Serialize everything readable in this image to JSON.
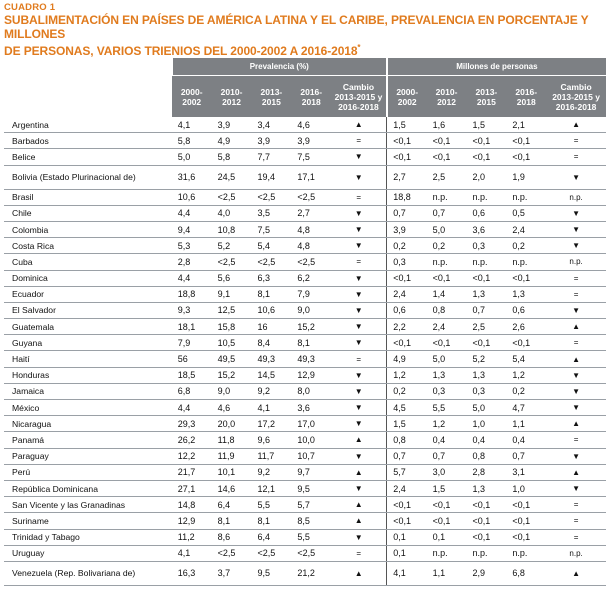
{
  "caption": {
    "label": "CUADRO 1",
    "title_line1": "SUBALIMENTACIÓN EN PAÍSES DE AMÉRICA LATINA Y EL CARIBE, PREVALENCIA EN PORCENTAJE Y MILLONES",
    "title_line2": "DE PERSONAS, VARIOS TRIENIOS DEL 2000-2002 A 2016-2018",
    "title_mark": "*"
  },
  "header": {
    "prevalence_group": "Prevalencia (%)",
    "millions_group": "Millones de personas",
    "p1_a": "2000-",
    "p1_b": "2002",
    "p2_a": "2010-",
    "p2_b": "2012",
    "p3_a": "2013-",
    "p3_b": "2015",
    "p4_a": "2016-",
    "p4_b": "2018",
    "chg_a": "Cambio",
    "chg_b": "2013-2015 y",
    "chg_c": "2016-2018"
  },
  "rows": [
    {
      "country": "Argentina",
      "p": [
        "4,1",
        "3,9",
        "3,4",
        "4,6"
      ],
      "pc": "▲",
      "m": [
        "1,5",
        "1,6",
        "1,5",
        "2,1"
      ],
      "mc": "▲"
    },
    {
      "country": "Barbados",
      "p": [
        "5,8",
        "4,9",
        "3,9",
        "3,9"
      ],
      "pc": "=",
      "m": [
        "<0,1",
        "<0,1",
        "<0,1",
        "<0,1"
      ],
      "mc": "="
    },
    {
      "country": "Belice",
      "p": [
        "5,0",
        "5,8",
        "7,7",
        "7,5"
      ],
      "pc": "▼",
      "m": [
        "<0,1",
        "<0,1",
        "<0,1",
        "<0,1"
      ],
      "mc": "="
    },
    {
      "country": "Bolivia (Estado Plurinacional de)",
      "p": [
        "31,6",
        "24,5",
        "19,4",
        "17,1"
      ],
      "pc": "▼",
      "m": [
        "2,7",
        "2,5",
        "2,0",
        "1,9"
      ],
      "mc": "▼"
    },
    {
      "country": "Brasil",
      "p": [
        "10,6",
        "<2,5",
        "<2,5",
        "<2,5"
      ],
      "pc": "=",
      "m": [
        "18,8",
        "n.p.",
        "n.p.",
        "n.p."
      ],
      "mc": "n.p."
    },
    {
      "country": "Chile",
      "p": [
        "4,4",
        "4,0",
        "3,5",
        "2,7"
      ],
      "pc": "▼",
      "m": [
        "0,7",
        "0,7",
        "0,6",
        "0,5"
      ],
      "mc": "▼"
    },
    {
      "country": "Colombia",
      "p": [
        "9,4",
        "10,8",
        "7,5",
        "4,8"
      ],
      "pc": "▼",
      "m": [
        "3,9",
        "5,0",
        "3,6",
        "2,4"
      ],
      "mc": "▼"
    },
    {
      "country": "Costa Rica",
      "p": [
        "5,3",
        "5,2",
        "5,4",
        "4,8"
      ],
      "pc": "▼",
      "m": [
        "0,2",
        "0,2",
        "0,3",
        "0,2"
      ],
      "mc": "▼"
    },
    {
      "country": "Cuba",
      "p": [
        "2,8",
        "<2,5",
        "<2,5",
        "<2,5"
      ],
      "pc": "=",
      "m": [
        "0,3",
        "n.p.",
        "n.p.",
        "n.p."
      ],
      "mc": "n.p."
    },
    {
      "country": "Dominica",
      "p": [
        "4,4",
        "5,6",
        "6,3",
        "6,2"
      ],
      "pc": "▼",
      "m": [
        "<0,1",
        "<0,1",
        "<0,1",
        "<0,1"
      ],
      "mc": "="
    },
    {
      "country": "Ecuador",
      "p": [
        "18,8",
        "9,1",
        "8,1",
        "7,9"
      ],
      "pc": "▼",
      "m": [
        "2,4",
        "1,4",
        "1,3",
        "1,3"
      ],
      "mc": "="
    },
    {
      "country": "El Salvador",
      "p": [
        "9,3",
        "12,5",
        "10,6",
        "9,0"
      ],
      "pc": "▼",
      "m": [
        "0,6",
        "0,8",
        "0,7",
        "0,6"
      ],
      "mc": "▼"
    },
    {
      "country": "Guatemala",
      "p": [
        "18,1",
        "15,8",
        "16",
        "15,2"
      ],
      "pc": "▼",
      "m": [
        "2,2",
        "2,4",
        "2,5",
        "2,6"
      ],
      "mc": "▲"
    },
    {
      "country": "Guyana",
      "p": [
        "7,9",
        "10,5",
        "8,4",
        "8,1"
      ],
      "pc": "▼",
      "m": [
        "<0,1",
        "<0,1",
        "<0,1",
        "<0,1"
      ],
      "mc": "="
    },
    {
      "country": "Haití",
      "p": [
        "56",
        "49,5",
        "49,3",
        "49,3"
      ],
      "pc": "=",
      "m": [
        "4,9",
        "5,0",
        "5,2",
        "5,4"
      ],
      "mc": "▲"
    },
    {
      "country": "Honduras",
      "p": [
        "18,5",
        "15,2",
        "14,5",
        "12,9"
      ],
      "pc": "▼",
      "m": [
        "1,2",
        "1,3",
        "1,3",
        "1,2"
      ],
      "mc": "▼"
    },
    {
      "country": "Jamaica",
      "p": [
        "6,8",
        "9,0",
        "9,2",
        "8,0"
      ],
      "pc": "▼",
      "m": [
        "0,2",
        "0,3",
        "0,3",
        "0,2"
      ],
      "mc": "▼"
    },
    {
      "country": "México",
      "p": [
        "4,4",
        "4,6",
        "4,1",
        "3,6"
      ],
      "pc": "▼",
      "m": [
        "4,5",
        "5,5",
        "5,0",
        "4,7"
      ],
      "mc": "▼"
    },
    {
      "country": "Nicaragua",
      "p": [
        "29,3",
        "20,0",
        "17,2",
        "17,0"
      ],
      "pc": "▼",
      "m": [
        "1,5",
        "1,2",
        "1,0",
        "1,1"
      ],
      "mc": "▲"
    },
    {
      "country": "Panamá",
      "p": [
        "26,2",
        "11,8",
        "9,6",
        "10,0"
      ],
      "pc": "▲",
      "m": [
        "0,8",
        "0,4",
        "0,4",
        "0,4"
      ],
      "mc": "="
    },
    {
      "country": "Paraguay",
      "p": [
        "12,2",
        "11,9",
        "11,7",
        "10,7"
      ],
      "pc": "▼",
      "m": [
        "0,7",
        "0,7",
        "0,8",
        "0,7"
      ],
      "mc": "▼"
    },
    {
      "country": "Perú",
      "p": [
        "21,7",
        "10,1",
        "9,2",
        "9,7"
      ],
      "pc": "▲",
      "m": [
        "5,7",
        "3,0",
        "2,8",
        "3,1"
      ],
      "mc": "▲"
    },
    {
      "country": "República Dominicana",
      "p": [
        "27,1",
        "14,6",
        "12,1",
        "9,5"
      ],
      "pc": "▼",
      "m": [
        "2,4",
        "1,5",
        "1,3",
        "1,0"
      ],
      "mc": "▼"
    },
    {
      "country": "San Vicente y las Granadinas",
      "p": [
        "14,8",
        "6,4",
        "5,5",
        "5,7"
      ],
      "pc": "▲",
      "m": [
        "<0,1",
        "<0,1",
        "<0,1",
        "<0,1"
      ],
      "mc": "="
    },
    {
      "country": "Suriname",
      "p": [
        "12,9",
        "8,1",
        "8,1",
        "8,5"
      ],
      "pc": "▲",
      "m": [
        "<0,1",
        "<0,1",
        "<0,1",
        "<0,1"
      ],
      "mc": "="
    },
    {
      "country": "Trinidad y Tabago",
      "p": [
        "11,2",
        "8,6",
        "6,4",
        "5,5"
      ],
      "pc": "▼",
      "m": [
        "0,1",
        "0,1",
        "<0,1",
        "<0,1"
      ],
      "mc": "="
    },
    {
      "country": "Uruguay",
      "p": [
        "4,1",
        "<2,5",
        "<2,5",
        "<2,5"
      ],
      "pc": "=",
      "m": [
        "0,1",
        "n.p.",
        "n.p.",
        "n.p."
      ],
      "mc": "n.p."
    },
    {
      "country": "Venezuela (Rep. Bolivariana de)",
      "p": [
        "16,3",
        "3,7",
        "9,5",
        "21,2"
      ],
      "pc": "▲",
      "m": [
        "4,1",
        "1,1",
        "2,9",
        "6,8"
      ],
      "mc": "▲"
    }
  ]
}
